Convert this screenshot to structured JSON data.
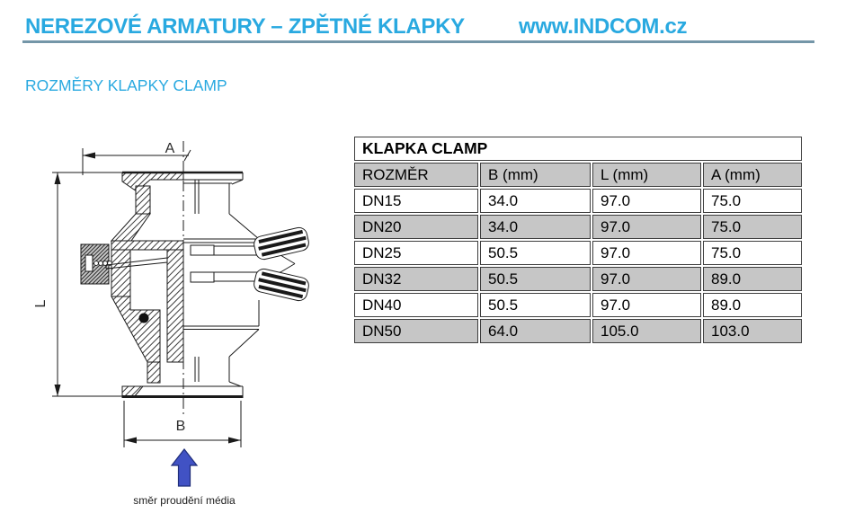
{
  "header": {
    "title": "NEREZOVÉ ARMATURY – ZPĚTNÉ KLAPKY",
    "website": "www.INDCOM.cz",
    "accent_color": "#29a9e0",
    "rule_color": "#7496a8"
  },
  "section": {
    "subtitle": "ROZMĚRY KLAPKY CLAMP"
  },
  "drawing": {
    "dim_labels": {
      "a": "A",
      "l": "L",
      "b": "B"
    },
    "flow_caption": "směr proudění média",
    "flow_arrow_color": "#4152c4"
  },
  "table": {
    "title": "KLAPKA CLAMP",
    "columns": [
      "ROZMĚR",
      "B (mm)",
      "L (mm)",
      "A (mm)"
    ],
    "rows": [
      {
        "size": "DN15",
        "b": "34.0",
        "l": "97.0",
        "a": "75.0"
      },
      {
        "size": "DN20",
        "b": "34.0",
        "l": "97.0",
        "a": "75.0"
      },
      {
        "size": "DN25",
        "b": "50.5",
        "l": "97.0",
        "a": "75.0"
      },
      {
        "size": "DN32",
        "b": "50.5",
        "l": "97.0",
        "a": "89.0"
      },
      {
        "size": "DN40",
        "b": "50.5",
        "l": "97.0",
        "a": "89.0"
      },
      {
        "size": "DN50",
        "b": "64.0",
        "l": "105.0",
        "a": "103.0"
      }
    ],
    "header_bg": "#c6c6c6",
    "alt_row_bg": "#c6c6c6",
    "border_color": "#3d3d3d"
  }
}
